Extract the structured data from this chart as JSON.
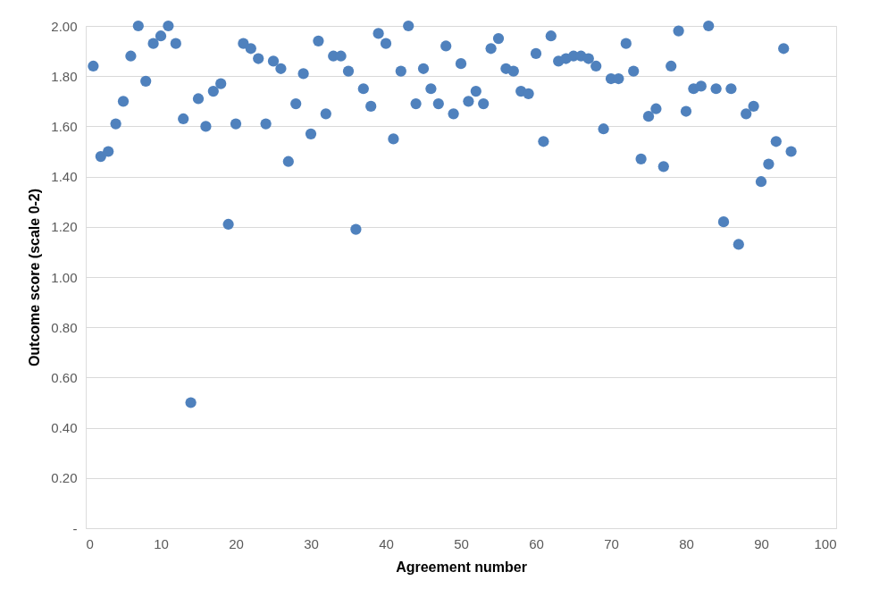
{
  "chart_data": {
    "type": "scatter",
    "xlabel": "Agreement number",
    "ylabel": "Outcome score (scale 0-2)",
    "x": [
      1,
      2,
      3,
      4,
      5,
      6,
      7,
      8,
      9,
      10,
      11,
      12,
      13,
      14,
      15,
      16,
      17,
      18,
      19,
      20,
      21,
      22,
      23,
      24,
      25,
      26,
      27,
      28,
      29,
      30,
      31,
      32,
      33,
      34,
      35,
      36,
      37,
      38,
      39,
      40,
      41,
      42,
      43,
      44,
      45,
      46,
      47,
      48,
      49,
      50,
      51,
      52,
      53,
      54,
      55,
      56,
      57,
      58,
      59,
      60,
      61,
      62,
      63,
      64,
      65,
      66,
      67,
      68,
      69,
      70,
      71,
      72,
      73,
      74,
      75,
      76,
      77,
      78,
      79,
      80,
      81,
      82,
      83,
      84,
      85,
      86,
      87,
      88,
      89,
      90,
      91,
      92,
      93,
      94
    ],
    "series": [
      {
        "color": "#4f81bd",
        "values": [
          1.84,
          1.48,
          1.5,
          1.61,
          1.7,
          1.88,
          2.0,
          1.78,
          1.93,
          1.96,
          2.0,
          1.93,
          1.63,
          0.5,
          1.71,
          1.6,
          1.74,
          1.77,
          1.21,
          1.61,
          1.93,
          1.91,
          1.87,
          1.61,
          1.86,
          1.83,
          1.46,
          1.69,
          1.81,
          1.57,
          1.94,
          1.65,
          1.88,
          1.88,
          1.82,
          1.19,
          1.75,
          1.68,
          1.97,
          1.93,
          1.55,
          1.82,
          2.0,
          1.69,
          1.83,
          1.75,
          1.69,
          1.92,
          1.65,
          1.85,
          1.7,
          1.74,
          1.69,
          1.91,
          1.95,
          1.83,
          1.82,
          1.74,
          1.73,
          1.89,
          1.54,
          1.96,
          1.86,
          1.87,
          1.88,
          1.88,
          1.87,
          1.84,
          1.59,
          1.79,
          1.79,
          1.93,
          1.82,
          1.47,
          1.64,
          1.67,
          1.44,
          1.84,
          1.98,
          1.66,
          1.75,
          1.76,
          2.0,
          1.75,
          1.22,
          1.75,
          1.13,
          1.65,
          1.68,
          1.38,
          1.45,
          1.54,
          1.91,
          1.5
        ]
      }
    ],
    "xlim": [
      0,
      100
    ],
    "xticks": [
      0,
      10,
      20,
      30,
      40,
      50,
      60,
      70,
      80,
      90,
      100
    ],
    "ylim": [
      0,
      2
    ],
    "yticks": [
      {
        "value": 0,
        "label": "-"
      },
      {
        "value": 0.2,
        "label": "0.20"
      },
      {
        "value": 0.4,
        "label": "0.40"
      },
      {
        "value": 0.6,
        "label": "0.60"
      },
      {
        "value": 0.8,
        "label": "0.80"
      },
      {
        "value": 1.0,
        "label": "1.00"
      },
      {
        "value": 1.2,
        "label": "1.20"
      },
      {
        "value": 1.4,
        "label": "1.40"
      },
      {
        "value": 1.6,
        "label": "1.60"
      },
      {
        "value": 1.8,
        "label": "1.80"
      },
      {
        "value": 2.0,
        "label": "2.00"
      }
    ],
    "grid": "y",
    "marker": "circle",
    "legend": false
  }
}
